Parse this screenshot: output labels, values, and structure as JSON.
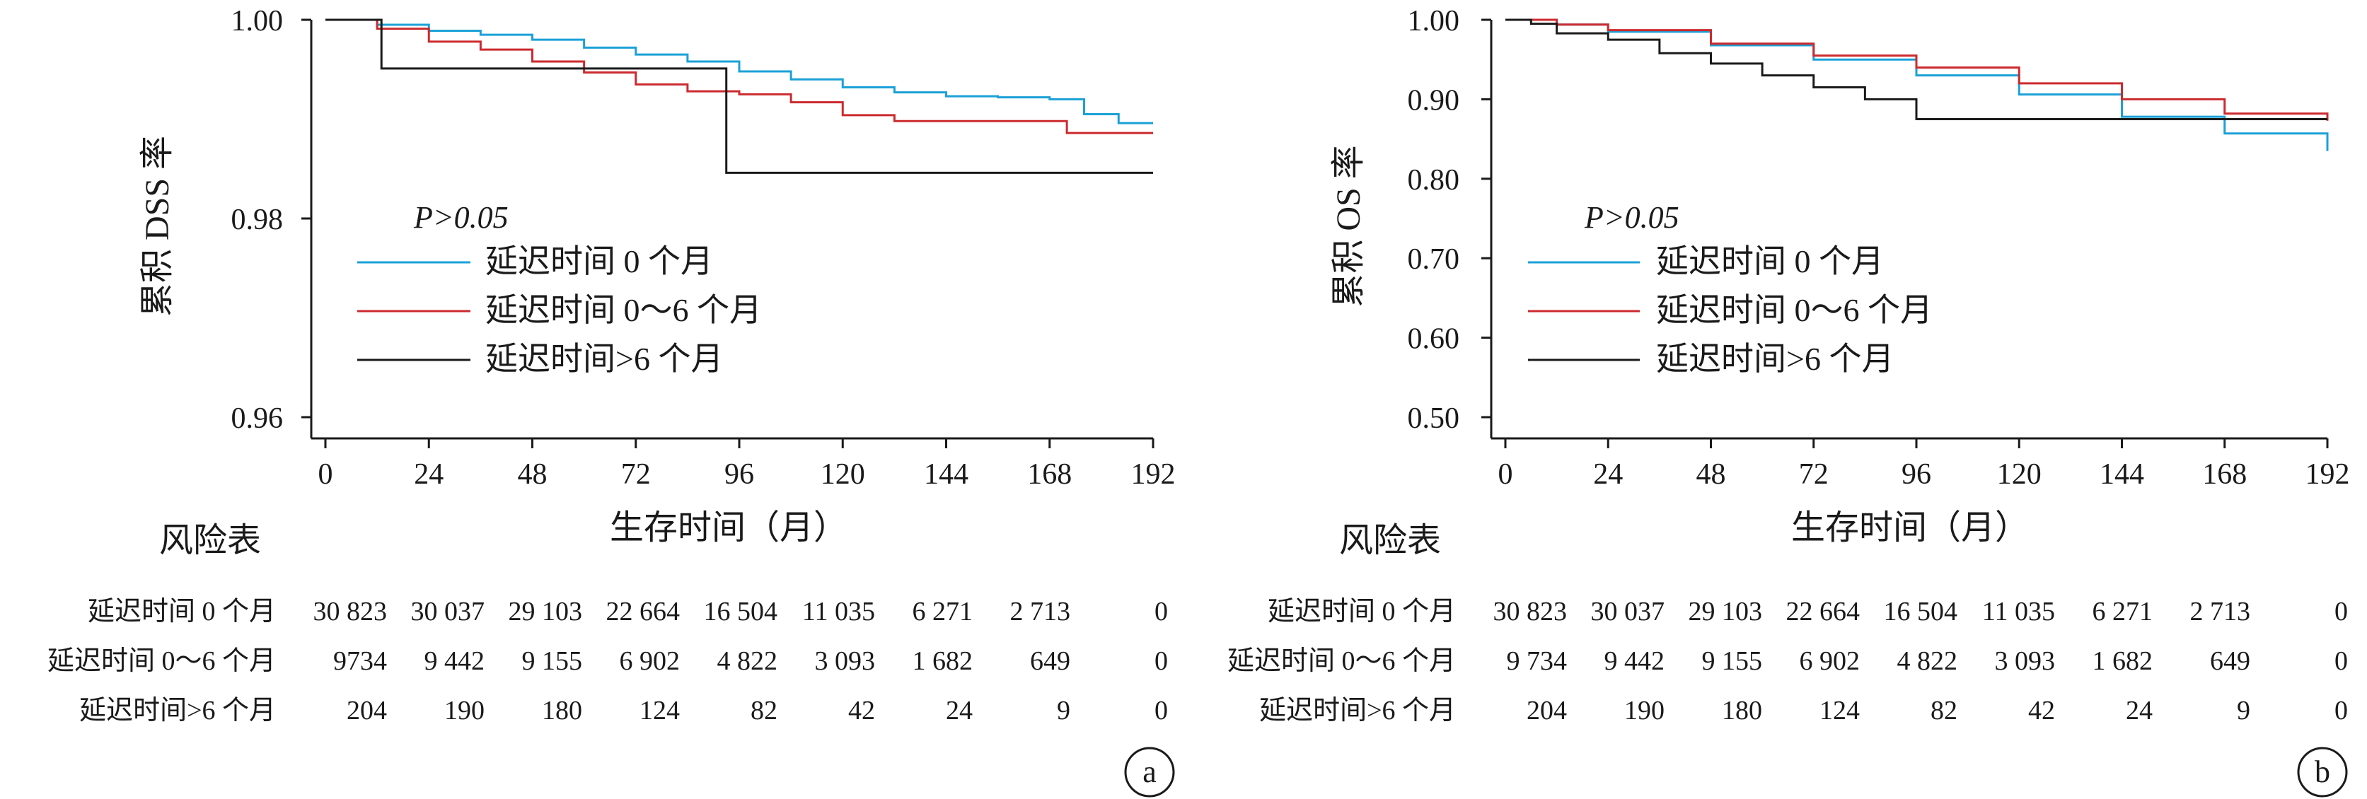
{
  "chart_data": [
    {
      "type": "line",
      "panel_label": "a",
      "ylabel": "累积 DSS 率",
      "xlabel": "生存时间（月）",
      "xlim": [
        0,
        192
      ],
      "ylim": [
        0.96,
        1.0
      ],
      "x_ticks": [
        0,
        24,
        48,
        72,
        96,
        120,
        144,
        168,
        192
      ],
      "y_ticks": [
        0.96,
        0.98,
        1.0
      ],
      "y_tick_labels": [
        "0.96",
        "0.98",
        "1.00"
      ],
      "annotation": "P>0.05",
      "legend_position": "center-left",
      "series": [
        {
          "name": "延迟时间 0 个月",
          "color": "#1ba1d7",
          "x": [
            0,
            12,
            24,
            36,
            48,
            60,
            72,
            84,
            96,
            108,
            120,
            132,
            144,
            156,
            168,
            176,
            184,
            192
          ],
          "y": [
            1.0,
            0.9995,
            0.9989,
            0.9985,
            0.998,
            0.9972,
            0.9965,
            0.9958,
            0.9948,
            0.994,
            0.9932,
            0.9927,
            0.9923,
            0.9922,
            0.992,
            0.9905,
            0.9896,
            0.9896
          ]
        },
        {
          "name": "延迟时间 0～6 个月",
          "color": "#cc2a2f",
          "x": [
            0,
            12,
            24,
            36,
            48,
            60,
            72,
            84,
            96,
            108,
            120,
            132,
            144,
            156,
            168,
            172,
            192
          ],
          "y": [
            1.0,
            0.9991,
            0.9978,
            0.997,
            0.9958,
            0.9947,
            0.9935,
            0.9928,
            0.9925,
            0.9917,
            0.9904,
            0.9898,
            0.9898,
            0.9898,
            0.9898,
            0.9886,
            0.9886
          ]
        },
        {
          "name": "延迟时间>6 个月",
          "color": "#1a1a1a",
          "x": [
            0,
            13,
            13,
            93,
            93,
            192
          ],
          "y": [
            1.0,
            1.0,
            0.9951,
            0.9951,
            0.9846,
            0.9846
          ]
        }
      ]
    },
    {
      "type": "line",
      "panel_label": "b",
      "ylabel": "累积 OS 率",
      "xlabel": "生存时间（月）",
      "xlim": [
        0,
        192
      ],
      "ylim": [
        0.5,
        1.0
      ],
      "x_ticks": [
        0,
        24,
        48,
        72,
        96,
        120,
        144,
        168,
        192
      ],
      "y_ticks": [
        0.5,
        0.6,
        0.7,
        0.8,
        0.9,
        1.0
      ],
      "y_tick_labels": [
        "0.50",
        "0.60",
        "0.70",
        "0.80",
        "0.90",
        "1.00"
      ],
      "annotation": "P>0.05",
      "legend_position": "center-left",
      "series": [
        {
          "name": "延迟时间 0 个月",
          "color": "#1ba1d7",
          "x": [
            0,
            12,
            24,
            48,
            72,
            96,
            120,
            144,
            168,
            192
          ],
          "y": [
            1.0,
            0.994,
            0.985,
            0.968,
            0.95,
            0.93,
            0.906,
            0.878,
            0.857,
            0.835
          ]
        },
        {
          "name": "延迟时间 0～6 个月",
          "color": "#cc2a2f",
          "x": [
            0,
            12,
            24,
            48,
            72,
            96,
            120,
            144,
            168,
            192
          ],
          "y": [
            1.0,
            0.994,
            0.987,
            0.97,
            0.955,
            0.94,
            0.92,
            0.9,
            0.882,
            0.873
          ]
        },
        {
          "name": "延迟时间>6 个月",
          "color": "#1a1a1a",
          "x": [
            0,
            6,
            12,
            24,
            36,
            48,
            60,
            72,
            84,
            96,
            192
          ],
          "y": [
            1.0,
            0.995,
            0.983,
            0.975,
            0.958,
            0.945,
            0.93,
            0.915,
            0.9,
            0.875,
            0.875
          ]
        }
      ]
    }
  ],
  "risk_tables": [
    {
      "title": "风险表",
      "rows": [
        {
          "label": "延迟时间 0 个月",
          "values": [
            "30 823",
            "30 037",
            "29 103",
            "22 664",
            "16 504",
            "11 035",
            "6 271",
            "2 713",
            "0"
          ]
        },
        {
          "label": "延迟时间 0～6 个月",
          "values": [
            "9734",
            "9 442",
            "9 155",
            "6 902",
            "4 822",
            "3 093",
            "1 682",
            "649",
            "0"
          ]
        },
        {
          "label": "延迟时间>6 个月",
          "values": [
            "204",
            "190",
            "180",
            "124",
            "82",
            "42",
            "24",
            "9",
            "0"
          ]
        }
      ]
    },
    {
      "title": "风险表",
      "rows": [
        {
          "label": "延迟时间 0 个月",
          "values": [
            "30 823",
            "30 037",
            "29 103",
            "22 664",
            "16 504",
            "11 035",
            "6 271",
            "2 713",
            "0"
          ]
        },
        {
          "label": "延迟时间 0～6 个月",
          "values": [
            "9 734",
            "9 442",
            "9 155",
            "6 902",
            "4 822",
            "3 093",
            "1 682",
            "649",
            "0"
          ]
        },
        {
          "label": "延迟时间>6 个月",
          "values": [
            "204",
            "190",
            "180",
            "124",
            "82",
            "42",
            "24",
            "9",
            "0"
          ]
        }
      ]
    }
  ]
}
